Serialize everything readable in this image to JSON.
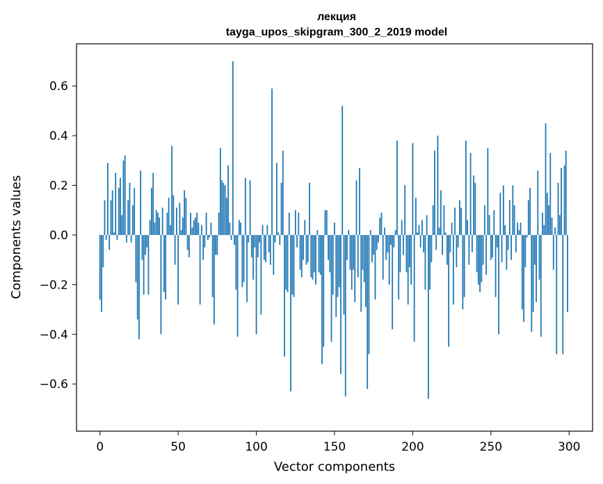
{
  "chart_data": {
    "type": "bar",
    "title": "лекция",
    "subtitle": "tayga_upos_skipgram_300_2_2019 model",
    "xlabel": "Vector components",
    "ylabel": "Components values",
    "xlim": [
      -15,
      315
    ],
    "ylim": [
      -0.79,
      0.77
    ],
    "xticks": [
      0,
      50,
      100,
      150,
      200,
      250,
      300
    ],
    "xtick_labels": [
      "0",
      "50",
      "100",
      "150",
      "200",
      "250",
      "300"
    ],
    "yticks": [
      -0.6,
      -0.4,
      -0.2,
      0.0,
      0.2,
      0.4,
      0.6
    ],
    "ytick_labels": [
      "−0.6",
      "−0.4",
      "−0.2",
      "0.0",
      "0.2",
      "0.4",
      "0.6"
    ],
    "bar_color": "#1f77b4",
    "values": [
      -0.26,
      -0.31,
      -0.13,
      0.14,
      -0.02,
      0.29,
      -0.06,
      0.14,
      0.18,
      0.01,
      0.25,
      -0.02,
      0.19,
      0.23,
      0.08,
      0.3,
      0.32,
      -0.03,
      0.14,
      0.21,
      -0.03,
      0.12,
      0.19,
      -0.19,
      -0.34,
      -0.42,
      0.26,
      -0.1,
      -0.24,
      -0.08,
      -0.05,
      -0.24,
      0.06,
      0.19,
      0.25,
      0.05,
      0.1,
      0.09,
      0.07,
      -0.4,
      0.11,
      -0.23,
      -0.26,
      0.09,
      0.15,
      0.04,
      0.36,
      0.16,
      -0.12,
      0.11,
      -0.28,
      0.13,
      0.02,
      0.07,
      0.18,
      0.15,
      -0.06,
      -0.09,
      0.09,
      0.03,
      0.06,
      0.07,
      0.09,
      0.05,
      -0.28,
      0.04,
      -0.1,
      -0.05,
      0.09,
      -0.02,
      -0.01,
      0.05,
      -0.25,
      -0.36,
      -0.08,
      -0.08,
      0.09,
      0.35,
      0.22,
      0.21,
      0.2,
      0.15,
      0.28,
      0.05,
      -0.02,
      0.7,
      -0.04,
      -0.22,
      -0.41,
      0.06,
      0.05,
      -0.21,
      -0.19,
      0.23,
      -0.27,
      -0.03,
      0.22,
      -0.09,
      -0.18,
      -0.05,
      -0.4,
      -0.09,
      -0.03,
      -0.32,
      0.04,
      -0.1,
      -0.11,
      0.04,
      -0.07,
      -0.12,
      0.59,
      -0.16,
      -0.03,
      0.29,
      0.01,
      -0.04,
      0.21,
      0.34,
      -0.49,
      -0.22,
      -0.23,
      0.09,
      -0.63,
      -0.24,
      -0.25,
      0.1,
      -0.05,
      0.09,
      -0.14,
      -0.17,
      -0.1,
      0.06,
      -0.12,
      -0.11,
      0.21,
      -0.17,
      -0.18,
      -0.15,
      -0.2,
      0.02,
      -0.15,
      -0.16,
      -0.52,
      -0.45,
      0.1,
      0.1,
      -0.1,
      -0.15,
      -0.43,
      -0.24,
      0.05,
      -0.33,
      -0.25,
      -0.21,
      -0.56,
      0.52,
      -0.32,
      -0.65,
      -0.1,
      0.02,
      -0.14,
      -0.22,
      -0.14,
      -0.27,
      0.22,
      -0.17,
      0.27,
      -0.31,
      -0.14,
      -0.19,
      -0.29,
      -0.62,
      -0.48,
      0.02,
      -0.11,
      -0.08,
      -0.26,
      -0.06,
      -0.03,
      0.07,
      0.09,
      -0.18,
      0.03,
      -0.1,
      -0.07,
      -0.2,
      -0.04,
      -0.38,
      -0.05,
      0.02,
      0.38,
      -0.26,
      -0.15,
      0.06,
      -0.08,
      0.2,
      -0.15,
      -0.28,
      -0.13,
      -0.2,
      0.37,
      -0.43,
      0.15,
      0.01,
      0.04,
      -0.05,
      0.06,
      -0.07,
      -0.22,
      0.08,
      -0.66,
      -0.22,
      -0.11,
      0.12,
      0.34,
      -0.06,
      0.4,
      0.03,
      0.18,
      -0.08,
      0.12,
      0.01,
      -0.12,
      -0.45,
      -0.07,
      0.05,
      -0.28,
      0.11,
      -0.13,
      -0.05,
      0.14,
      0.11,
      -0.3,
      -0.25,
      0.38,
      0.06,
      -0.12,
      0.33,
      -0.07,
      0.24,
      0.21,
      -0.15,
      -0.2,
      -0.23,
      -0.19,
      -0.12,
      0.12,
      -0.16,
      0.35,
      0.08,
      -0.1,
      -0.09,
      0.1,
      -0.25,
      -0.05,
      -0.4,
      0.17,
      -0.11,
      0.2,
      0.04,
      -0.14,
      -0.06,
      0.14,
      -0.1,
      0.2,
      0.12,
      -0.07,
      0.05,
      0.02,
      0.05,
      -0.3,
      -0.35,
      -0.13,
      -0.01,
      0.14,
      0.19,
      -0.39,
      -0.31,
      -0.12,
      -0.27,
      0.26,
      -0.18,
      -0.41,
      0.09,
      0.04,
      0.45,
      0.17,
      0.12,
      0.33,
      0.07,
      -0.14,
      0.03,
      -0.48,
      0.21,
      0.08,
      0.27,
      -0.48,
      0.28,
      0.34,
      -0.31
    ]
  }
}
